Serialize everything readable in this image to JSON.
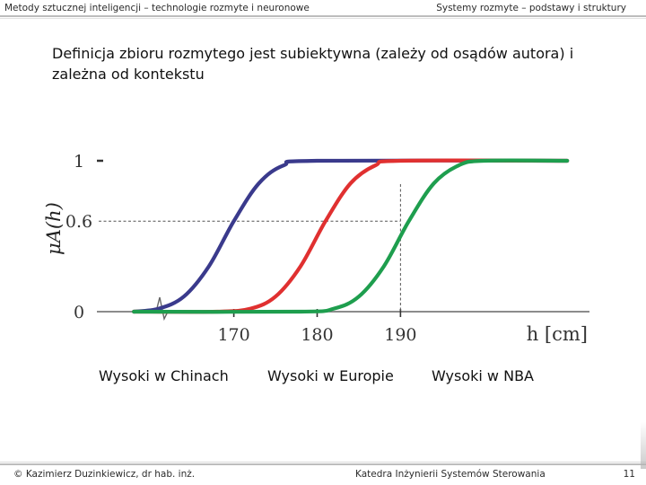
{
  "header": {
    "left": "Metody sztucznej inteligencji – technologie rozmyte i neuronowe",
    "right": "Systemy rozmyte – podstawy i struktury"
  },
  "heading": "Definicja zbioru rozmytego jest subiektywna (zależy od osądów autora) i zależna od kontekstu",
  "chart_data": {
    "type": "line",
    "ylabel": "μA(h)",
    "xlabel": "h [cm]",
    "x_ticks": [
      "170",
      "180",
      "190"
    ],
    "y_ticks": [
      "0",
      "0.6",
      "1"
    ],
    "series": [
      {
        "name": "Wysoki w Chinach",
        "color": "#3a3a8c",
        "x": [
          158,
          161,
          164,
          167,
          170,
          173,
          176,
          180,
          210
        ],
        "y": [
          0,
          0.02,
          0.1,
          0.3,
          0.6,
          0.85,
          0.97,
          1,
          1
        ]
      },
      {
        "name": "Wysoki w Europie",
        "color": "#e03030",
        "x": [
          158,
          168,
          172,
          175,
          178,
          181,
          184,
          187,
          190,
          210
        ],
        "y": [
          0,
          0,
          0.02,
          0.1,
          0.3,
          0.6,
          0.85,
          0.97,
          1,
          1
        ]
      },
      {
        "name": "Wysoki w NBA",
        "color": "#1e9e4e",
        "x": [
          158,
          178,
          182,
          185,
          188,
          191,
          194,
          197,
          200,
          210
        ],
        "y": [
          0,
          0,
          0.02,
          0.1,
          0.3,
          0.6,
          0.85,
          0.97,
          1,
          1
        ]
      }
    ],
    "reference_lines": [
      {
        "axis": "y",
        "value": 0.6
      },
      {
        "axis": "x",
        "value": 190
      }
    ],
    "xlim": [
      154,
      213
    ],
    "ylim": [
      0,
      1
    ]
  },
  "captions": [
    "Wysoki w Chinach",
    "Wysoki w Europie",
    "Wysoki w NBA"
  ],
  "footer": {
    "left": "© Kazimierz Duzinkiewicz, dr hab. inż.",
    "middle": "Katedra Inżynierii Systemów Sterowania",
    "page": "11"
  }
}
